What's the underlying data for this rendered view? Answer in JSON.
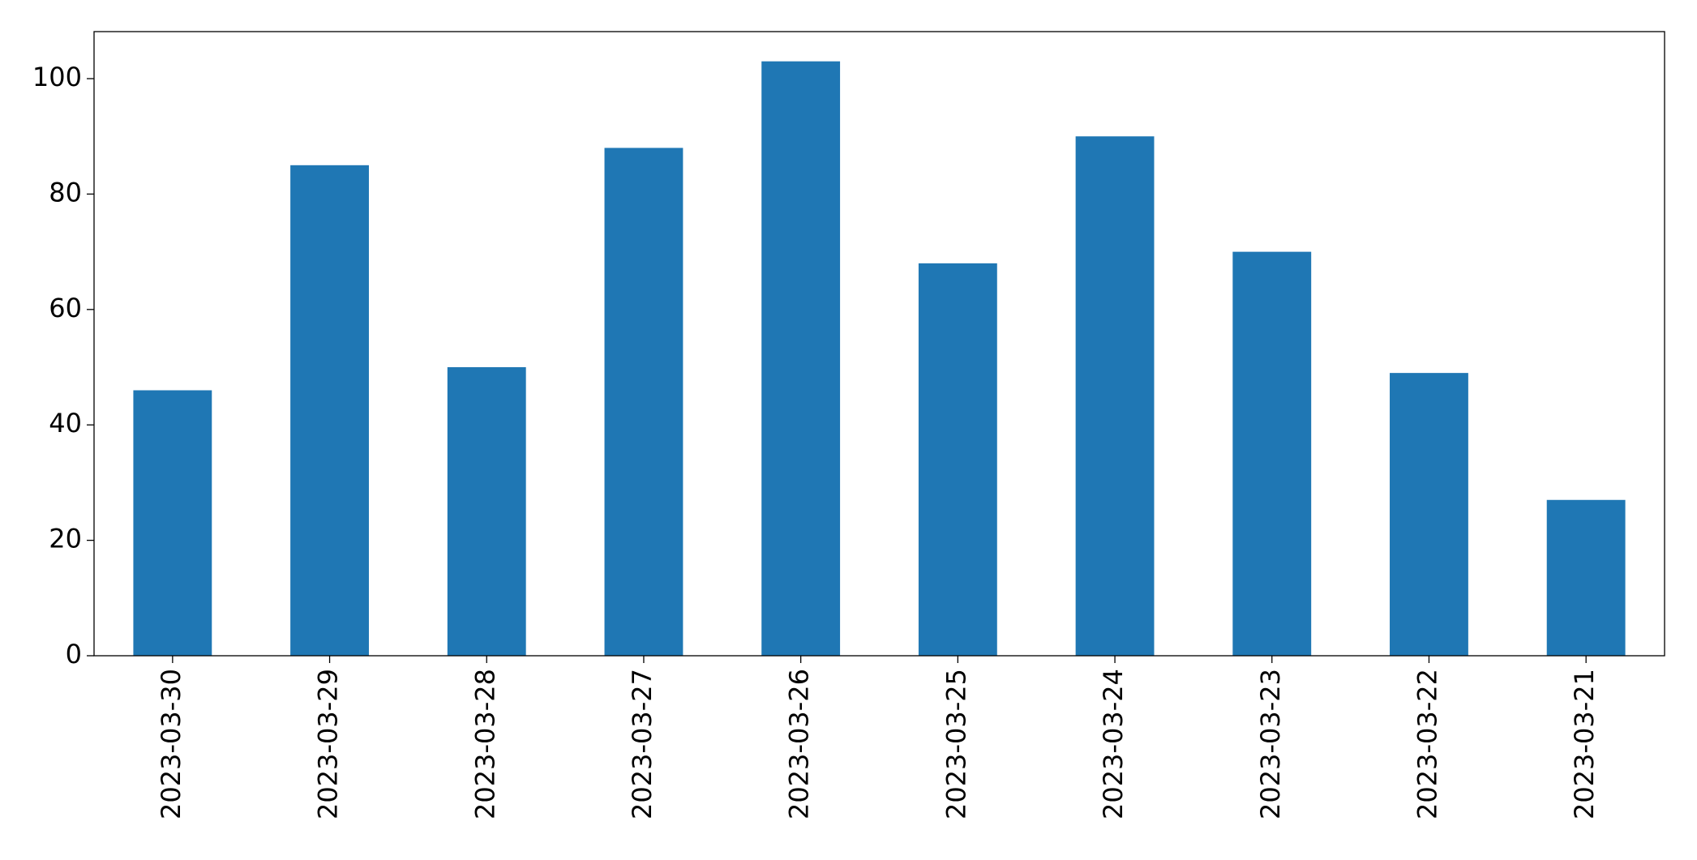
{
  "chart_data": {
    "type": "bar",
    "categories": [
      "2023-03-30",
      "2023-03-29",
      "2023-03-28",
      "2023-03-27",
      "2023-03-26",
      "2023-03-25",
      "2023-03-24",
      "2023-03-23",
      "2023-03-22",
      "2023-03-21"
    ],
    "values": [
      46,
      85,
      50,
      88,
      103,
      68,
      90,
      70,
      49,
      27
    ],
    "color": "#1f77b4",
    "ylim": [
      0,
      108.15
    ],
    "yticks": [
      0,
      20,
      40,
      60,
      80,
      100
    ],
    "grid": false
  }
}
